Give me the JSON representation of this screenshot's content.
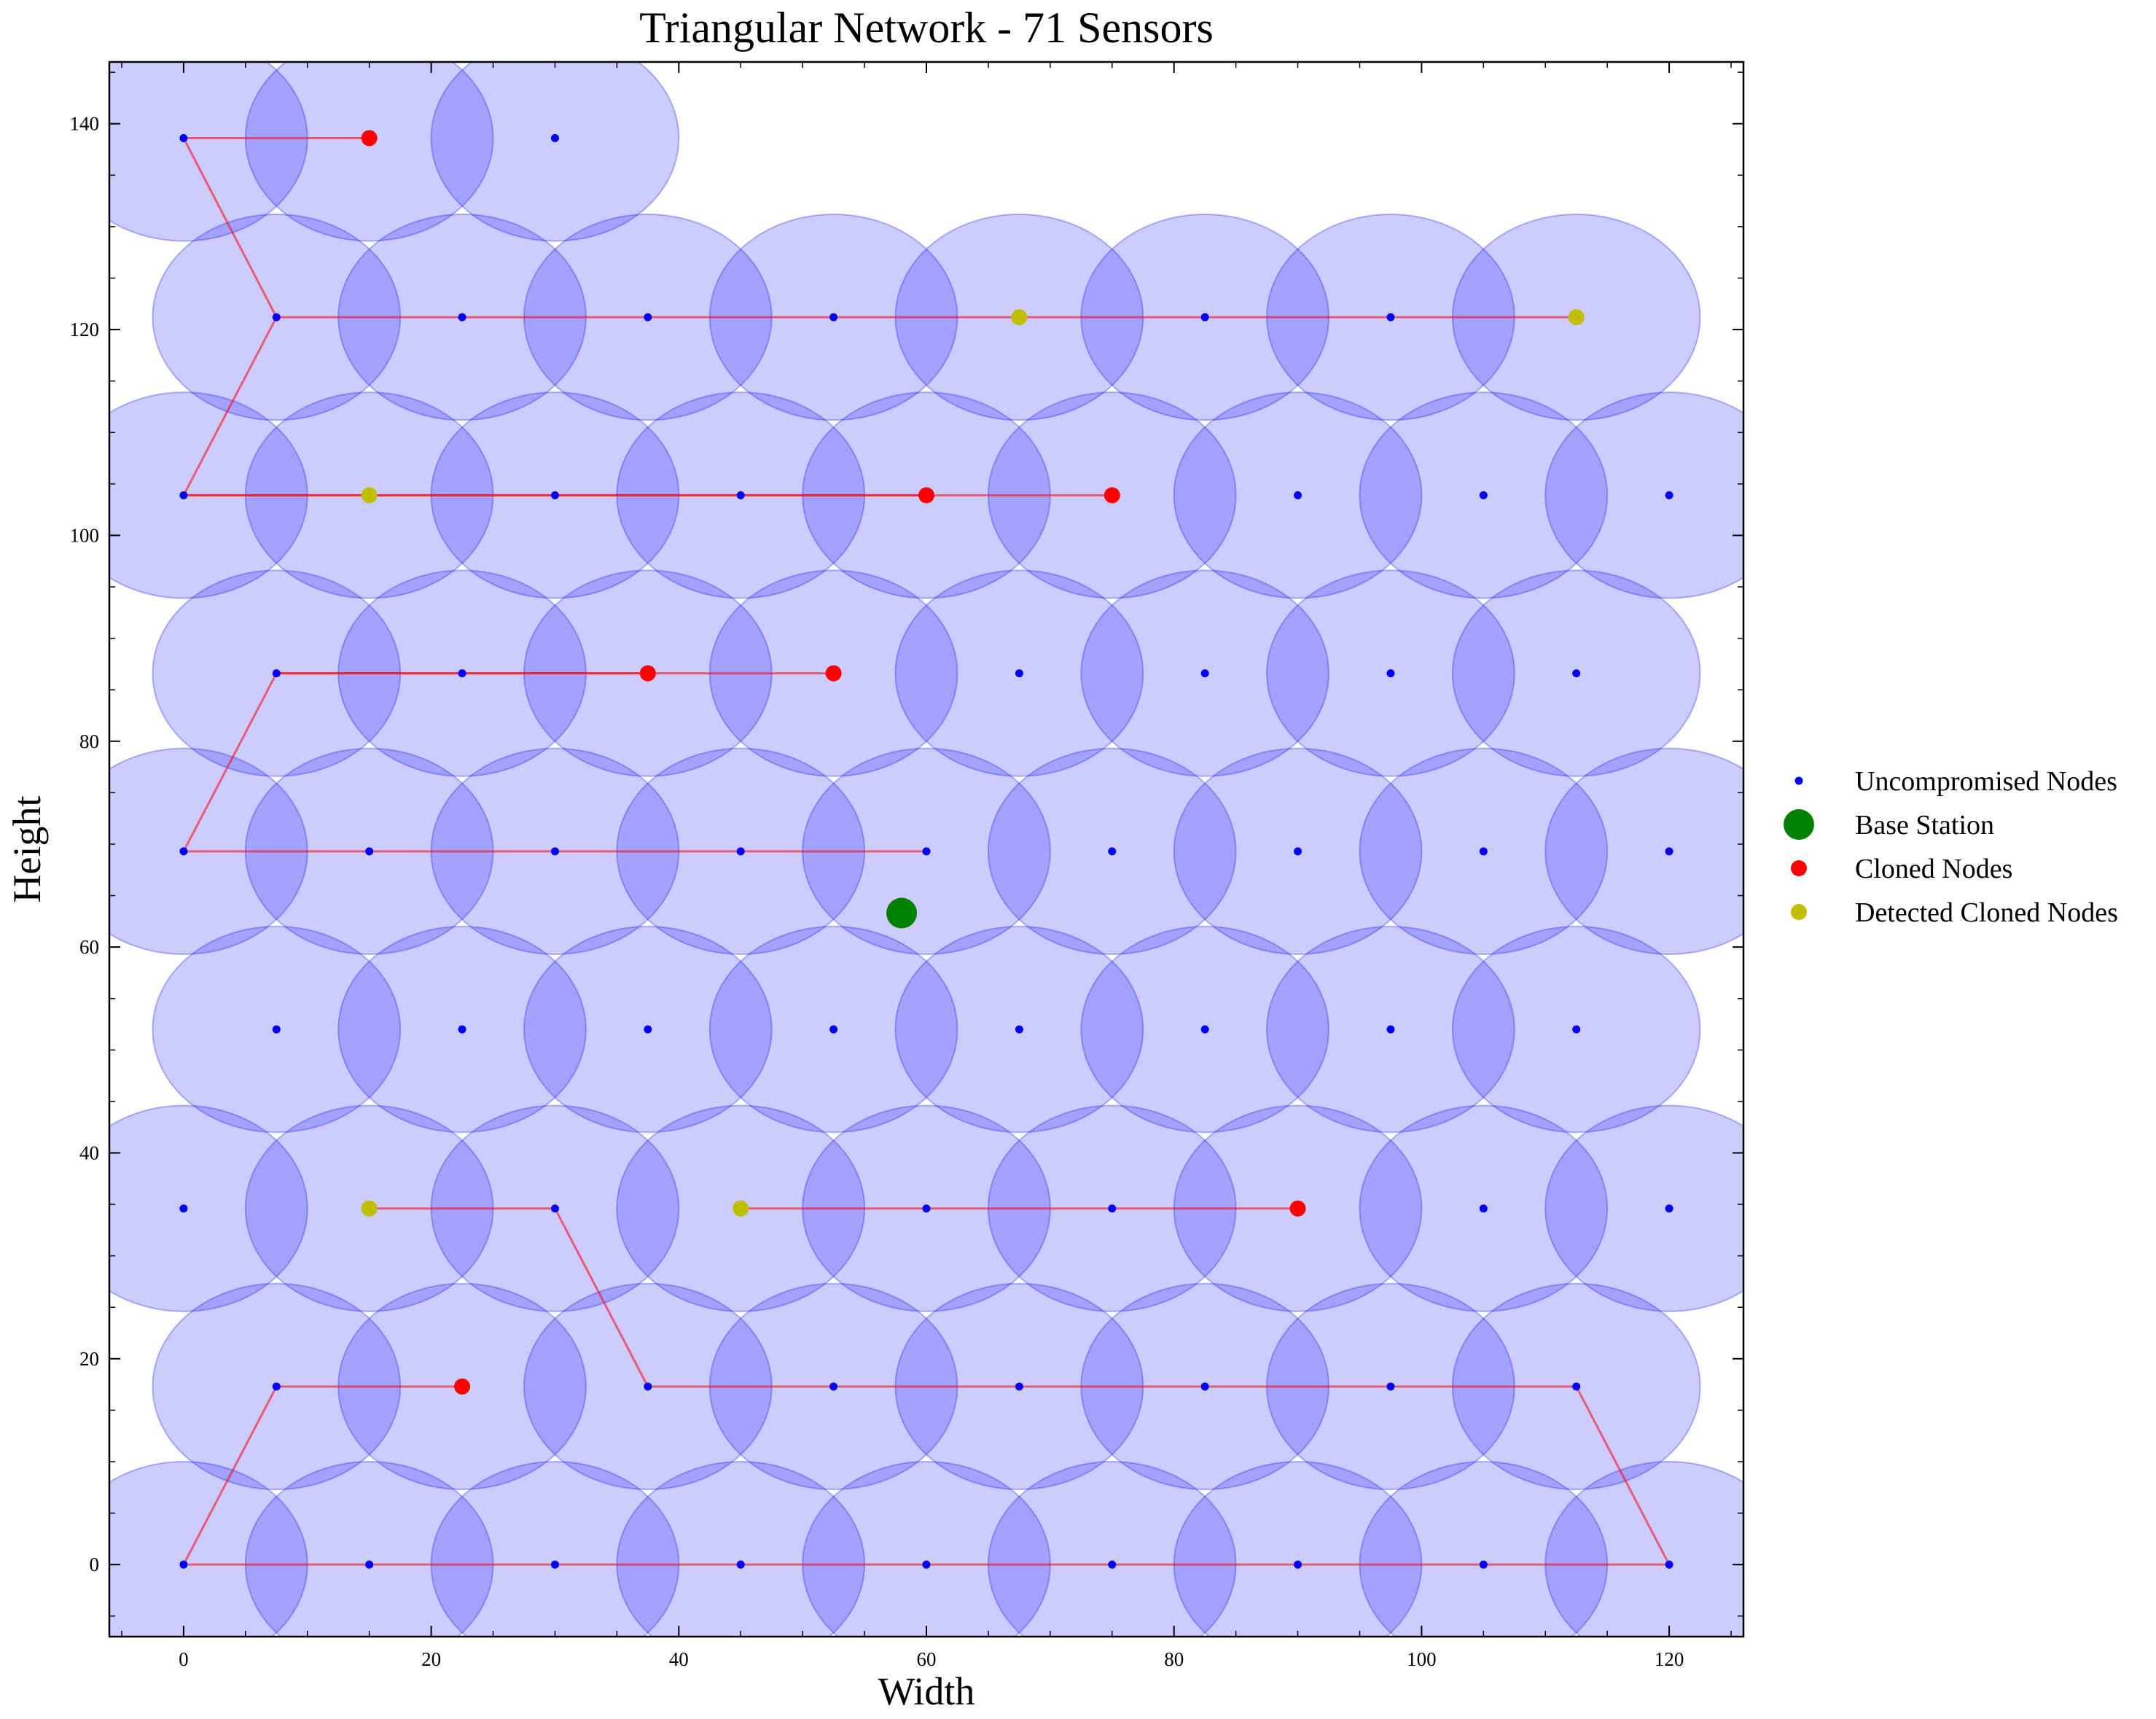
{
  "chart_data": {
    "type": "scatter",
    "title": "Triangular Network - 71 Sensors",
    "xlabel": "Width",
    "ylabel": "Height",
    "xlim": [
      -6,
      126
    ],
    "ylim": [
      -7,
      146
    ],
    "xticks": [
      0,
      20,
      40,
      60,
      80,
      100,
      120
    ],
    "yticks": [
      0,
      20,
      40,
      60,
      80,
      100,
      120,
      140
    ],
    "xtick_labels": [
      "0",
      "20",
      "40",
      "60",
      "80",
      "100",
      "120"
    ],
    "ytick_labels": [
      "0",
      "20",
      "40",
      "60",
      "80",
      "100",
      "120",
      "140"
    ],
    "grid": false,
    "legend_position": "right",
    "sensing_radius": 10,
    "colors": {
      "coverage": "#0000ff",
      "uncompromised": "#0000ff",
      "base_station": "#008000",
      "cloned": "#ff0000",
      "detected": "#bfbf00",
      "path": "#ff0000"
    },
    "legend": [
      {
        "key": "uncompromised",
        "label": "Uncompromised Nodes"
      },
      {
        "key": "base_station",
        "label": "Base Station"
      },
      {
        "key": "cloned",
        "label": "Cloned Nodes"
      },
      {
        "key": "detected",
        "label": "Detected Cloned Nodes"
      }
    ],
    "nodes": [
      {
        "x": 0,
        "y": 0
      },
      {
        "x": 15,
        "y": 0
      },
      {
        "x": 30,
        "y": 0
      },
      {
        "x": 45,
        "y": 0
      },
      {
        "x": 60,
        "y": 0
      },
      {
        "x": 75,
        "y": 0
      },
      {
        "x": 90,
        "y": 0
      },
      {
        "x": 105,
        "y": 0
      },
      {
        "x": 120,
        "y": 0
      },
      {
        "x": 7.5,
        "y": 17.3
      },
      {
        "x": 22.5,
        "y": 17.3
      },
      {
        "x": 37.5,
        "y": 17.3
      },
      {
        "x": 52.5,
        "y": 17.3
      },
      {
        "x": 67.5,
        "y": 17.3
      },
      {
        "x": 82.5,
        "y": 17.3
      },
      {
        "x": 97.5,
        "y": 17.3
      },
      {
        "x": 112.5,
        "y": 17.3
      },
      {
        "x": 0,
        "y": 34.6
      },
      {
        "x": 15,
        "y": 34.6
      },
      {
        "x": 30,
        "y": 34.6
      },
      {
        "x": 45,
        "y": 34.6
      },
      {
        "x": 60,
        "y": 34.6
      },
      {
        "x": 75,
        "y": 34.6
      },
      {
        "x": 90,
        "y": 34.6
      },
      {
        "x": 105,
        "y": 34.6
      },
      {
        "x": 120,
        "y": 34.6
      },
      {
        "x": 7.5,
        "y": 52.0
      },
      {
        "x": 22.5,
        "y": 52.0
      },
      {
        "x": 37.5,
        "y": 52.0
      },
      {
        "x": 52.5,
        "y": 52.0
      },
      {
        "x": 67.5,
        "y": 52.0
      },
      {
        "x": 82.5,
        "y": 52.0
      },
      {
        "x": 97.5,
        "y": 52.0
      },
      {
        "x": 112.5,
        "y": 52.0
      },
      {
        "x": 0,
        "y": 69.3
      },
      {
        "x": 15,
        "y": 69.3
      },
      {
        "x": 30,
        "y": 69.3
      },
      {
        "x": 45,
        "y": 69.3
      },
      {
        "x": 60,
        "y": 69.3
      },
      {
        "x": 75,
        "y": 69.3
      },
      {
        "x": 90,
        "y": 69.3
      },
      {
        "x": 105,
        "y": 69.3
      },
      {
        "x": 120,
        "y": 69.3
      },
      {
        "x": 7.5,
        "y": 86.6
      },
      {
        "x": 22.5,
        "y": 86.6
      },
      {
        "x": 37.5,
        "y": 86.6
      },
      {
        "x": 52.5,
        "y": 86.6
      },
      {
        "x": 67.5,
        "y": 86.6
      },
      {
        "x": 82.5,
        "y": 86.6
      },
      {
        "x": 97.5,
        "y": 86.6
      },
      {
        "x": 112.5,
        "y": 86.6
      },
      {
        "x": 0,
        "y": 103.9
      },
      {
        "x": 15,
        "y": 103.9
      },
      {
        "x": 30,
        "y": 103.9
      },
      {
        "x": 45,
        "y": 103.9
      },
      {
        "x": 60,
        "y": 103.9
      },
      {
        "x": 75,
        "y": 103.9
      },
      {
        "x": 90,
        "y": 103.9
      },
      {
        "x": 105,
        "y": 103.9
      },
      {
        "x": 120,
        "y": 103.9
      },
      {
        "x": 7.5,
        "y": 121.2
      },
      {
        "x": 22.5,
        "y": 121.2
      },
      {
        "x": 37.5,
        "y": 121.2
      },
      {
        "x": 52.5,
        "y": 121.2
      },
      {
        "x": 67.5,
        "y": 121.2
      },
      {
        "x": 82.5,
        "y": 121.2
      },
      {
        "x": 97.5,
        "y": 121.2
      },
      {
        "x": 112.5,
        "y": 121.2
      },
      {
        "x": 0,
        "y": 138.6
      },
      {
        "x": 15,
        "y": 138.6
      },
      {
        "x": 30,
        "y": 138.6
      }
    ],
    "base_station": {
      "x": 58,
      "y": 63.3
    },
    "cloned": [
      {
        "x": 15,
        "y": 138.6
      },
      {
        "x": 60,
        "y": 103.9
      },
      {
        "x": 75,
        "y": 103.9
      },
      {
        "x": 37.5,
        "y": 86.6
      },
      {
        "x": 52.5,
        "y": 86.6
      },
      {
        "x": 90,
        "y": 34.6
      },
      {
        "x": 22.5,
        "y": 17.3
      }
    ],
    "detected": [
      {
        "x": 67.5,
        "y": 121.2
      },
      {
        "x": 112.5,
        "y": 121.2
      },
      {
        "x": 15,
        "y": 103.9
      },
      {
        "x": 15,
        "y": 34.6
      },
      {
        "x": 45,
        "y": 34.6
      }
    ],
    "paths": [
      [
        [
          15,
          138.6
        ],
        [
          0,
          138.6
        ],
        [
          7.5,
          121.2
        ],
        [
          112.5,
          121.2
        ]
      ],
      [
        [
          7.5,
          121.2
        ],
        [
          0,
          103.9
        ],
        [
          75,
          103.9
        ]
      ],
      [
        [
          0,
          103.9
        ],
        [
          60,
          103.9
        ]
      ],
      [
        [
          52.5,
          86.6
        ],
        [
          7.5,
          86.6
        ],
        [
          0,
          69.3
        ],
        [
          60,
          69.3
        ]
      ],
      [
        [
          7.5,
          86.6
        ],
        [
          37.5,
          86.6
        ]
      ],
      [
        [
          15,
          34.6
        ],
        [
          30,
          34.6
        ],
        [
          37.5,
          17.3
        ],
        [
          112.5,
          17.3
        ],
        [
          120,
          0
        ],
        [
          0,
          0
        ],
        [
          7.5,
          17.3
        ],
        [
          22.5,
          17.3
        ]
      ],
      [
        [
          45,
          34.6
        ],
        [
          90,
          34.6
        ]
      ]
    ]
  }
}
